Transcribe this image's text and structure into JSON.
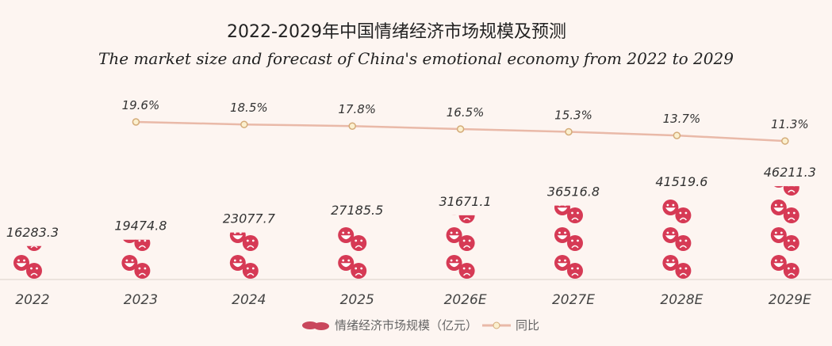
{
  "title": "2022-2029年中国情绪经济市场规模及预测",
  "subtitle": "The market size and forecast of China's emotional economy from 2022 to 2029",
  "colors": {
    "bar": "#d63a55",
    "line": "#e9b9a8",
    "marker_fill": "#fbf0cf",
    "marker_stroke": "#d4ab78",
    "background": "#fdf5f1"
  },
  "chart_data": {
    "type": "bar+line",
    "bar_style": "pictorial stacked emoji icons (happy and sad faces)",
    "categories": [
      "2022",
      "2023",
      "2024",
      "2025",
      "2026E",
      "2027E",
      "2028E",
      "2029E"
    ],
    "series": [
      {
        "name": "情绪经济市场规模（亿元）",
        "type": "bar",
        "values": [
          16283.3,
          19474.8,
          23077.7,
          27185.5,
          31671.1,
          36516.8,
          41519.6,
          46211.3
        ],
        "labels": [
          "16283.3",
          "19474.8",
          "23077.7",
          "27185.5",
          "31671.1",
          "36516.8",
          "41519.6",
          "46211.3"
        ]
      },
      {
        "name": "同比",
        "type": "line",
        "values": [
          null,
          19.6,
          18.5,
          17.8,
          16.5,
          15.3,
          13.7,
          11.3
        ],
        "labels": [
          "",
          "19.6%",
          "18.5%",
          "17.8%",
          "16.5%",
          "15.3%",
          "13.7%",
          "11.3%"
        ]
      }
    ],
    "legend": "bottom",
    "grid": false
  }
}
